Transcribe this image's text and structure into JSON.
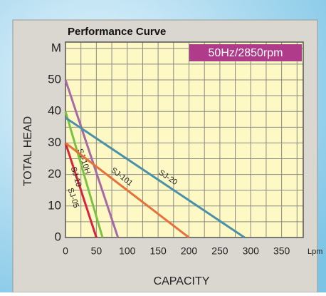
{
  "chart_data": {
    "type": "line",
    "title": "Performance Curve",
    "annotation": "50Hz/2850rpm",
    "y_label": "TOTAL HEAD",
    "x_label": "CAPACITY",
    "x_unit": "Lpm",
    "xlim": [
      0,
      385
    ],
    "ylim": [
      0,
      62
    ],
    "xticks": [
      0,
      50,
      100,
      150,
      200,
      250,
      300,
      350
    ],
    "yticks": [
      0,
      10,
      20,
      30,
      40,
      50,
      {
        "value": 60,
        "label": "M"
      }
    ],
    "xgrid": [
      0,
      25,
      50,
      75,
      100,
      125,
      150,
      175,
      200,
      225,
      250,
      275,
      300,
      325,
      350,
      375
    ],
    "ygrid": [
      0,
      5,
      10,
      15,
      20,
      25,
      30,
      35,
      40,
      45,
      50,
      55,
      60
    ],
    "grid": true,
    "series": [
      {
        "name": "SJ-05",
        "color": "#d8233c",
        "x": [
          0,
          50
        ],
        "values": [
          30,
          0
        ]
      },
      {
        "name": "SJ-10",
        "color": "#7cc242",
        "x": [
          0,
          60
        ],
        "values": [
          40,
          0
        ]
      },
      {
        "name": "SJ-10H",
        "color": "#a868a8",
        "x": [
          0,
          85
        ],
        "values": [
          50,
          0
        ]
      },
      {
        "name": "SJ-101",
        "color": "#e8703a",
        "x": [
          0,
          200
        ],
        "values": [
          30,
          0
        ]
      },
      {
        "name": "SJ-20",
        "color": "#4a90a8",
        "x": [
          0,
          290
        ],
        "values": [
          38,
          0
        ]
      }
    ]
  }
}
